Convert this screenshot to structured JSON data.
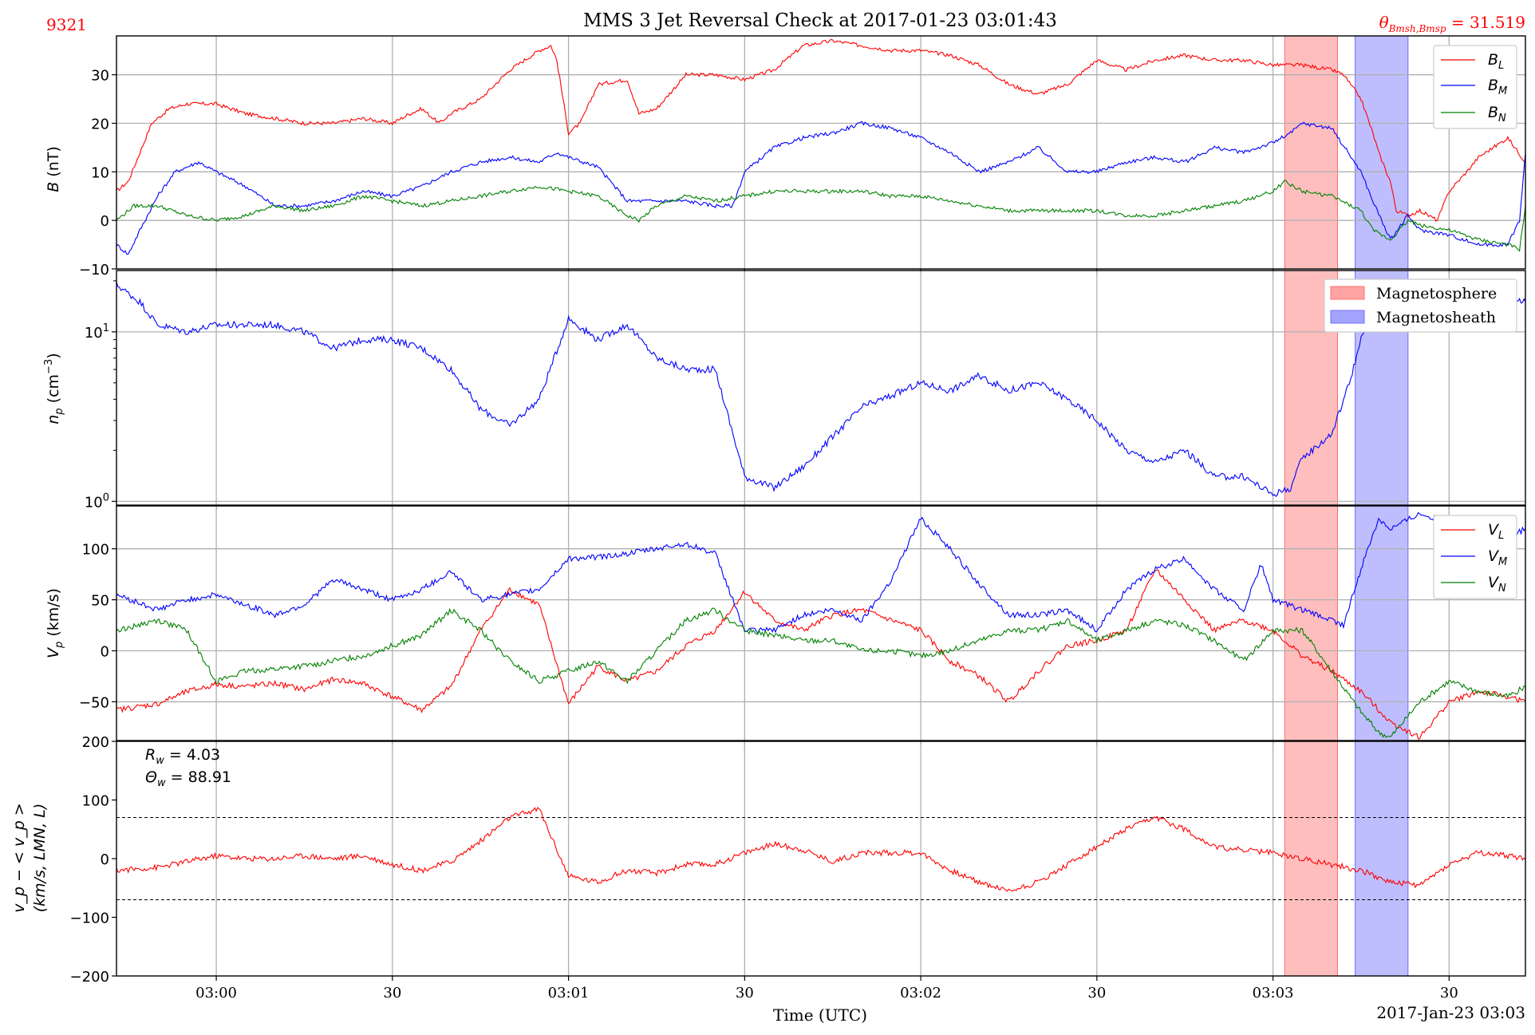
{
  "figure": {
    "title": "MMS 3 Jet Reversal Check at 2017-01-23 03:01:43",
    "id_label": "9321",
    "theta_label": "θ",
    "theta_sub": "Bmsh,Bmsp",
    "theta_value": " = 31.519",
    "xlabel": "Time (UTC)",
    "date_label": "2017-Jan-23 03:03",
    "x_ticks": [
      "03:00",
      "30",
      "03:01",
      "30",
      "03:02",
      "30",
      "03:03",
      "30"
    ],
    "colors": {
      "red": "#ff0000",
      "blue": "#0000ff",
      "green": "#008000",
      "span_red": "#ffa3a3",
      "span_blue": "#a3a3ff"
    }
  },
  "chart_data": [
    {
      "type": "line",
      "panel": "B",
      "ylabel": "B (nT)",
      "ylim": [
        -10,
        38
      ],
      "yticks": [
        "30",
        "20",
        "10",
        "0",
        "−10"
      ],
      "x_unit": "seconds after 03:00:00 UTC",
      "xlim": [
        -17,
        223
      ],
      "legend": [
        "B_L",
        "B_M",
        "B_N"
      ],
      "spans": [
        {
          "name": "Magnetosphere",
          "x": [
            182,
            191
          ],
          "color": "red"
        },
        {
          "name": "Magnetosheath",
          "x": [
            194,
            203
          ],
          "color": "blue"
        }
      ],
      "series": [
        {
          "name": "B_L",
          "color": "red",
          "x": [
            -17,
            -15,
            -13,
            -11,
            -8,
            -5,
            0,
            5,
            10,
            15,
            20,
            25,
            30,
            33,
            35,
            38,
            40,
            45,
            50,
            55,
            57,
            58,
            60,
            62,
            65,
            70,
            72,
            75,
            80,
            85,
            90,
            95,
            100,
            105,
            110,
            115,
            120,
            125,
            130,
            135,
            140,
            145,
            150,
            155,
            160,
            165,
            170,
            175,
            180,
            183,
            185,
            190,
            192,
            195,
            197,
            198,
            200,
            201,
            203,
            205,
            208,
            210,
            213,
            215,
            220,
            223
          ],
          "y": [
            6,
            8,
            14,
            20,
            23,
            24,
            24,
            22,
            21,
            20,
            20,
            21,
            20,
            22,
            23,
            20,
            22,
            25,
            31,
            35,
            36,
            33,
            18,
            20,
            28,
            29,
            22,
            23,
            30,
            30,
            29,
            31,
            36,
            37,
            36,
            35,
            35,
            34,
            32,
            28,
            26,
            28,
            33,
            31,
            33,
            34,
            33,
            33,
            32,
            32,
            32,
            31,
            30,
            25,
            18,
            14,
            8,
            2,
            1,
            2,
            0,
            6,
            10,
            13,
            17,
            12
          ]
        },
        {
          "name": "B_M",
          "color": "blue",
          "x": [
            -17,
            -15,
            -13,
            -10,
            -7,
            -3,
            0,
            5,
            10,
            15,
            20,
            25,
            30,
            35,
            40,
            45,
            50,
            55,
            58,
            60,
            65,
            70,
            75,
            80,
            85,
            88,
            90,
            95,
            100,
            105,
            110,
            115,
            120,
            125,
            130,
            135,
            140,
            145,
            150,
            155,
            160,
            165,
            170,
            175,
            180,
            183,
            185,
            190,
            195,
            197,
            200,
            203,
            205,
            210,
            215,
            220,
            222,
            223
          ],
          "y": [
            -5,
            -7,
            -2,
            5,
            10,
            12,
            10,
            7,
            3,
            3,
            4,
            6,
            5,
            7,
            10,
            12,
            13,
            12,
            14,
            13,
            11,
            4,
            4,
            4,
            3,
            3,
            10,
            15,
            17,
            18,
            20,
            19,
            17,
            14,
            10,
            12,
            15,
            10,
            10,
            12,
            13,
            12,
            15,
            14,
            16,
            18,
            20,
            19,
            10,
            4,
            -4,
            1,
            -2,
            -3,
            -5,
            -5,
            0,
            14
          ]
        },
        {
          "name": "B_N",
          "color": "green",
          "x": [
            -17,
            -14,
            -10,
            -5,
            0,
            5,
            10,
            15,
            20,
            25,
            30,
            35,
            40,
            45,
            50,
            55,
            60,
            65,
            70,
            72,
            75,
            80,
            85,
            90,
            95,
            100,
            105,
            110,
            115,
            120,
            125,
            130,
            135,
            140,
            145,
            150,
            155,
            160,
            165,
            170,
            175,
            180,
            182,
            185,
            190,
            195,
            197,
            200,
            203,
            205,
            210,
            215,
            220,
            222,
            223
          ],
          "y": [
            0,
            3,
            3,
            1,
            0,
            1,
            3,
            2,
            3,
            5,
            4,
            3,
            4,
            5,
            6,
            7,
            6,
            5,
            1,
            0,
            3,
            5,
            4,
            5,
            6,
            6,
            6,
            6,
            5,
            5,
            4,
            3,
            2,
            2,
            2,
            2,
            1,
            1,
            2,
            3,
            4,
            6,
            8,
            6,
            5,
            2,
            -2,
            -4,
            0,
            -1,
            -2,
            -4,
            -5,
            -6,
            3
          ]
        }
      ]
    },
    {
      "type": "line",
      "panel": "np",
      "ylabel": "n_p (cm^-3)",
      "yscale": "log",
      "ylim": [
        0.95,
        23
      ],
      "yticks": [
        "10^1",
        "10^0"
      ],
      "xlim": [
        -17,
        223
      ],
      "legend": [
        "Magnetosphere",
        "Magnetosheath"
      ],
      "series": [
        {
          "name": "n_p",
          "color": "blue",
          "x": [
            -17,
            -13,
            -10,
            -5,
            0,
            5,
            10,
            15,
            20,
            25,
            30,
            35,
            40,
            45,
            50,
            55,
            60,
            65,
            70,
            75,
            80,
            85,
            90,
            95,
            100,
            105,
            110,
            115,
            120,
            125,
            130,
            135,
            140,
            145,
            150,
            155,
            160,
            165,
            170,
            175,
            180,
            183,
            185,
            190,
            193,
            195,
            197,
            200,
            203,
            205,
            210,
            215,
            220,
            223
          ],
          "y": [
            19,
            15,
            11,
            10,
            11,
            11,
            11,
            10,
            8,
            9,
            9,
            8,
            6,
            3.5,
            2.8,
            4,
            12,
            9,
            11,
            7,
            6,
            6,
            1.4,
            1.2,
            1.6,
            2.4,
            3.6,
            4.2,
            5,
            4.5,
            5.5,
            4.5,
            5,
            4,
            3,
            2,
            1.7,
            2,
            1.4,
            1.4,
            1.1,
            1.2,
            1.8,
            2.5,
            5,
            9,
            12,
            15,
            14,
            12,
            14,
            15,
            15,
            15
          ]
        }
      ]
    },
    {
      "type": "line",
      "panel": "V",
      "ylabel": "V_p (km/s)",
      "ylim": [
        -88,
        142
      ],
      "yticks": [
        "100",
        "50",
        "0",
        "−50"
      ],
      "xlim": [
        -17,
        223
      ],
      "legend": [
        "V_L",
        "V_M",
        "V_N"
      ],
      "series": [
        {
          "name": "V_L",
          "color": "red",
          "x": [
            -17,
            -10,
            -5,
            0,
            5,
            10,
            15,
            20,
            25,
            30,
            35,
            40,
            45,
            50,
            55,
            60,
            65,
            70,
            75,
            80,
            85,
            90,
            95,
            100,
            105,
            110,
            115,
            120,
            125,
            130,
            135,
            140,
            145,
            150,
            155,
            160,
            165,
            170,
            175,
            180,
            185,
            190,
            195,
            200,
            205,
            210,
            215,
            220,
            223
          ],
          "y": [
            -58,
            -52,
            -40,
            -33,
            -35,
            -32,
            -38,
            -28,
            -32,
            -45,
            -58,
            -35,
            20,
            60,
            45,
            -52,
            -15,
            -30,
            -20,
            5,
            20,
            58,
            30,
            20,
            35,
            40,
            30,
            20,
            -10,
            -25,
            -50,
            -20,
            5,
            10,
            20,
            80,
            50,
            20,
            30,
            20,
            -5,
            -20,
            -40,
            -70,
            -85,
            -50,
            -40,
            -45,
            -50
          ]
        },
        {
          "name": "V_M",
          "color": "blue",
          "x": [
            -17,
            -10,
            -5,
            0,
            5,
            10,
            15,
            20,
            25,
            30,
            35,
            40,
            45,
            50,
            55,
            60,
            65,
            70,
            75,
            80,
            85,
            90,
            95,
            100,
            105,
            110,
            115,
            120,
            125,
            130,
            135,
            140,
            145,
            150,
            155,
            160,
            165,
            170,
            175,
            178,
            180,
            185,
            190,
            192,
            195,
            198,
            200,
            205,
            210,
            215,
            220,
            223
          ],
          "y": [
            55,
            40,
            50,
            55,
            45,
            35,
            45,
            70,
            60,
            50,
            60,
            78,
            50,
            55,
            60,
            90,
            92,
            95,
            100,
            105,
            95,
            20,
            20,
            35,
            40,
            30,
            70,
            130,
            100,
            65,
            35,
            35,
            40,
            20,
            60,
            80,
            90,
            60,
            40,
            85,
            50,
            40,
            30,
            25,
            80,
            130,
            120,
            135,
            125,
            110,
            110,
            120
          ]
        },
        {
          "name": "V_N",
          "color": "green",
          "x": [
            -17,
            -10,
            -5,
            0,
            5,
            10,
            15,
            20,
            25,
            30,
            35,
            40,
            45,
            50,
            55,
            60,
            65,
            70,
            75,
            80,
            85,
            90,
            95,
            100,
            105,
            110,
            115,
            120,
            125,
            130,
            135,
            140,
            145,
            150,
            155,
            160,
            165,
            170,
            175,
            180,
            185,
            190,
            195,
            198,
            200,
            205,
            210,
            215,
            220,
            223
          ],
          "y": [
            20,
            30,
            20,
            -30,
            -20,
            -18,
            -15,
            -10,
            -5,
            5,
            15,
            40,
            20,
            -10,
            -30,
            -20,
            -10,
            -30,
            0,
            30,
            40,
            20,
            15,
            10,
            10,
            0,
            0,
            -5,
            0,
            10,
            20,
            20,
            30,
            10,
            20,
            30,
            25,
            10,
            -10,
            20,
            20,
            -20,
            -60,
            -80,
            -85,
            -50,
            -30,
            -40,
            -45,
            -35
          ]
        }
      ]
    },
    {
      "type": "line",
      "panel": "dV",
      "ylabel_line1": "v_p − < v_p >",
      "ylabel_line2": "(km/s, LMN, L)",
      "ylim": [
        -200,
        200
      ],
      "yticks": [
        "200",
        "100",
        "0",
        "−100",
        "−200"
      ],
      "xlim": [
        -17,
        223
      ],
      "annotations": [
        "R_w = 4.03",
        "Θ_w = 88.91"
      ],
      "thresholds": [
        70,
        -70
      ],
      "series": [
        {
          "name": "v_p - <v_p>",
          "color": "red",
          "x": [
            -17,
            -10,
            -5,
            0,
            5,
            10,
            15,
            20,
            25,
            30,
            35,
            40,
            45,
            50,
            55,
            60,
            65,
            70,
            75,
            80,
            85,
            90,
            95,
            100,
            105,
            110,
            115,
            120,
            125,
            130,
            135,
            140,
            145,
            150,
            155,
            160,
            165,
            170,
            175,
            180,
            185,
            190,
            195,
            200,
            205,
            210,
            215,
            220,
            223
          ],
          "y": [
            -20,
            -15,
            -5,
            5,
            0,
            0,
            5,
            0,
            5,
            -10,
            -20,
            -5,
            30,
            70,
            85,
            -30,
            -40,
            -20,
            -25,
            -10,
            -10,
            10,
            25,
            15,
            -5,
            10,
            10,
            10,
            -20,
            -40,
            -55,
            -40,
            -10,
            20,
            50,
            70,
            50,
            20,
            15,
            10,
            0,
            -10,
            -20,
            -40,
            -45,
            -10,
            10,
            5,
            0
          ]
        }
      ]
    }
  ]
}
